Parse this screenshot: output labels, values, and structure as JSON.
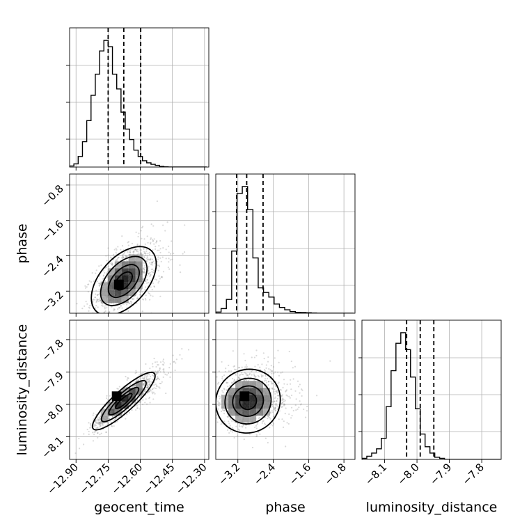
{
  "chart_data": {
    "type": "corner",
    "parameters": [
      "geocent_time",
      "phase",
      "luminosity_distance"
    ],
    "grid": true,
    "quantile_lines": "dashed",
    "marginals": [
      {
        "parameter": "geocent_time",
        "range": [
          -12.93,
          -12.28
        ],
        "quantiles": [
          -12.75,
          -12.677,
          -12.598
        ],
        "bin_edges_start": -12.93,
        "bin_width": 0.02,
        "counts": [
          0.5,
          1.5,
          5,
          12,
          22,
          34,
          44,
          55,
          60,
          57,
          44,
          37,
          26,
          18,
          13,
          8,
          5,
          3,
          2,
          1.3,
          0.8,
          0.3,
          0.1,
          0,
          0,
          0,
          0,
          0,
          0,
          0,
          0,
          0
        ]
      },
      {
        "parameter": "phase",
        "range": [
          -3.7,
          -0.55
        ],
        "quantiles": [
          -3.23,
          -3.0,
          -2.63
        ],
        "bin_edges_start": -3.7,
        "bin_width": 0.12,
        "counts": [
          0.5,
          2,
          6,
          27,
          52,
          55,
          45,
          24,
          11,
          9,
          7,
          4,
          2.5,
          1.5,
          0.7,
          0.4,
          0.3,
          0.2,
          0.1,
          0,
          0,
          0,
          0,
          0,
          0,
          0
        ]
      },
      {
        "parameter": "luminosity_distance",
        "range": [
          -8.17,
          -7.74
        ],
        "quantiles": [
          -8.032,
          -7.99,
          -7.948
        ],
        "bin_edges_start": -8.17,
        "bin_width": 0.015,
        "counts": [
          0.5,
          1.5,
          3,
          5,
          10,
          25,
          42,
          55,
          60,
          52,
          39,
          24,
          12,
          6,
          3,
          1,
          0.5,
          0,
          0,
          0,
          0,
          0,
          0,
          0,
          0,
          0,
          0,
          0,
          0
        ]
      }
    ],
    "pairs": [
      {
        "x": "geocent_time",
        "y": "phase",
        "xrange": [
          -12.93,
          -12.28
        ],
        "yrange": [
          -3.7,
          -0.55
        ],
        "mean": [
          -12.677,
          -2.97
        ],
        "sd": [
          0.07,
          0.38
        ],
        "rho": 0.5,
        "peak": [
          -12.7,
          -3.05
        ]
      },
      {
        "x": "geocent_time",
        "y": "luminosity_distance",
        "xrange": [
          -12.93,
          -12.28
        ],
        "yrange": [
          -8.17,
          -7.74
        ],
        "mean": [
          -12.677,
          -7.99
        ],
        "sd": [
          0.07,
          0.042
        ],
        "rho": 0.88,
        "peak": [
          -12.71,
          -7.975
        ]
      },
      {
        "x": "phase",
        "y": "luminosity_distance",
        "xrange": [
          -3.7,
          -0.55
        ],
        "yrange": [
          -8.17,
          -7.74
        ],
        "mean": [
          -2.97,
          -7.99
        ],
        "sd": [
          0.38,
          0.042
        ],
        "rho": 0.05,
        "peak": [
          -3.05,
          -7.975
        ]
      }
    ],
    "ticks": {
      "geocent_time": [
        "-12.90",
        "-12.75",
        "-12.60",
        "-12.45",
        "-12.30"
      ],
      "phase": [
        "-3.2",
        "-2.4",
        "-1.6",
        "-0.8"
      ],
      "luminosity_distance": [
        "-8.1",
        "-8.0",
        "-7.9",
        "-7.8"
      ]
    },
    "xlabels": [
      "geocent_time",
      "phase",
      "luminosity_distance"
    ],
    "ylabels": [
      "",
      "phase",
      "luminosity_distance"
    ]
  }
}
